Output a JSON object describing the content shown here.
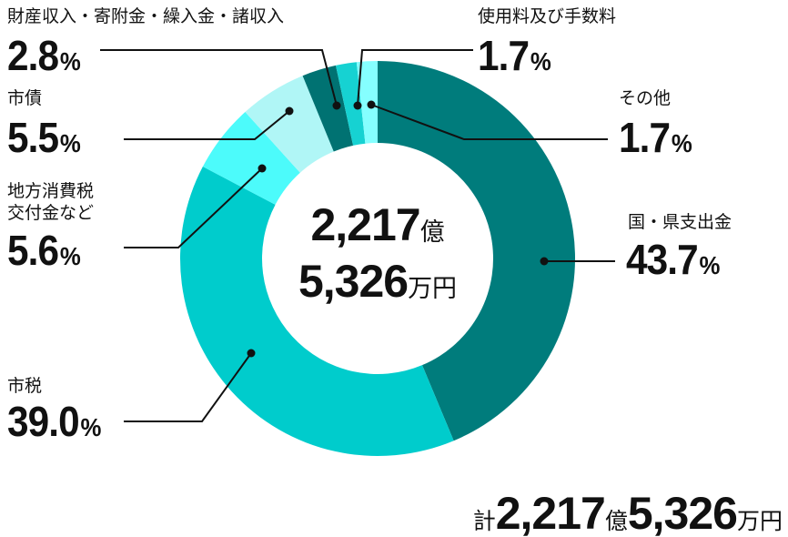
{
  "chart_data": {
    "type": "donut",
    "categories": [
      "国・県支出金",
      "市税",
      "地方消費税\n交付金など",
      "市債",
      "財産収入・寄附金・繰入金・諸収入",
      "使用料及び手数料",
      "その他"
    ],
    "values": [
      43.7,
      39.0,
      5.6,
      5.5,
      2.8,
      1.7,
      1.7
    ],
    "value_labels": [
      "43.7%",
      "39.0%",
      "5.6%",
      "5.5%",
      "2.8%",
      "1.7%",
      "1.7%"
    ],
    "colors": [
      "#007c7c",
      "#00cccc",
      "#4cfbfb",
      "#b0f6f6",
      "#007272",
      "#16d2d2",
      "#85ffff"
    ],
    "center_label": [
      {
        "number": "2,217",
        "unit": "億"
      },
      {
        "number": "5,326",
        "unit": "万円"
      }
    ],
    "total_label": {
      "prefix": "計",
      "parts": [
        {
          "number": "2,217",
          "unit": "億"
        },
        {
          "number": "5,326",
          "unit": "万円"
        }
      ]
    }
  }
}
